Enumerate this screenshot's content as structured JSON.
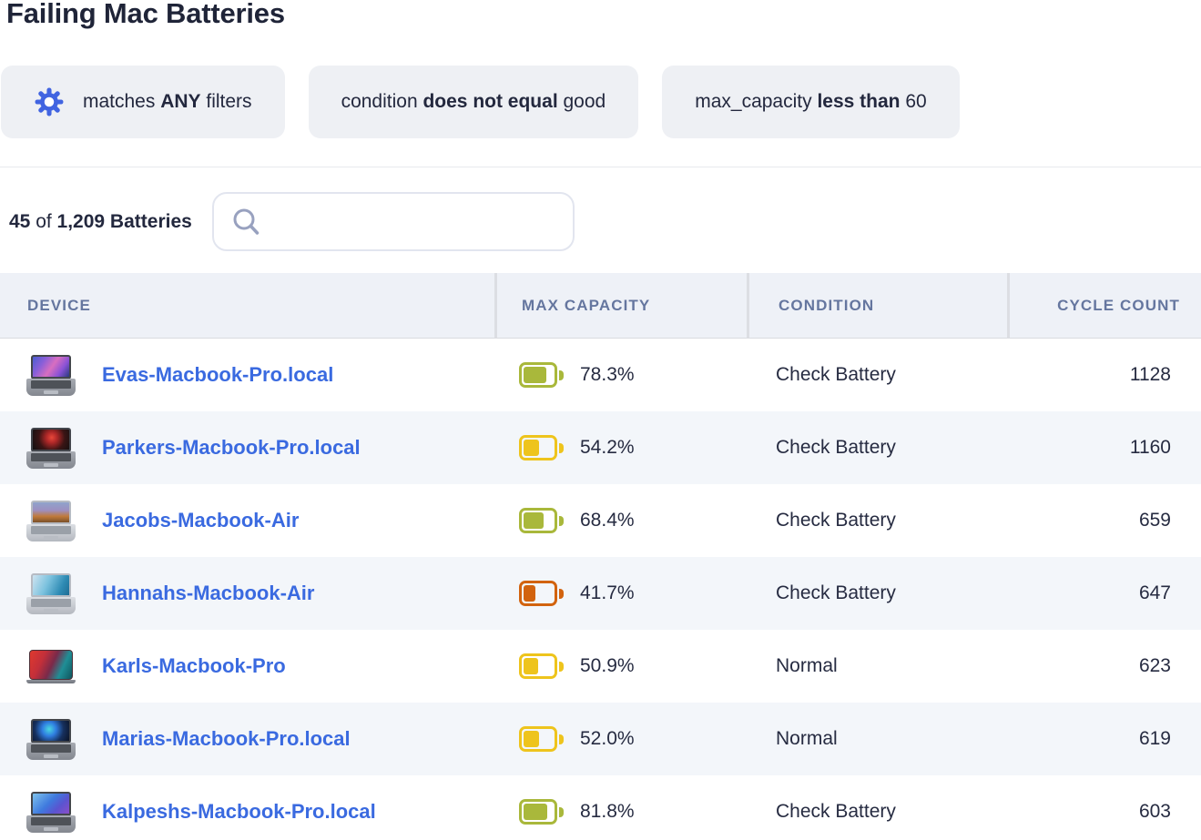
{
  "title": "Failing Mac Batteries",
  "filters": {
    "gear_color": "#4164e1",
    "chips": [
      {
        "icon": "gear-icon",
        "pre": "matches ",
        "bold": "ANY",
        "post": " filters"
      },
      {
        "icon": null,
        "pre": "condition ",
        "bold": "does not equal",
        "post": " good"
      },
      {
        "icon": null,
        "pre": "max_capacity ",
        "bold": "less than",
        "post": " 60"
      }
    ]
  },
  "toolbar": {
    "count": "45",
    "of_label": " of ",
    "total_label": "1,209 Batteries",
    "search_placeholder": ""
  },
  "table": {
    "link_color": "#3a6ae0",
    "columns": [
      "DEVICE",
      "MAX CAPACITY",
      "CONDITION",
      "CYCLE COUNT"
    ],
    "rows": [
      {
        "device": "Evas-Macbook-Pro.local",
        "max_capacity": "78.3%",
        "capacity_value": 78.3,
        "battery_color": "#a9b83b",
        "condition": "Check Battery",
        "cycle_count": "1128",
        "thumb": "pro-nebula"
      },
      {
        "device": "Parkers-Macbook-Pro.local",
        "max_capacity": "54.2%",
        "capacity_value": 54.2,
        "battery_color": "#eec41c",
        "condition": "Check Battery",
        "cycle_count": "1160",
        "thumb": "pro-red-burst"
      },
      {
        "device": "Jacobs-Macbook-Air",
        "max_capacity": "68.4%",
        "capacity_value": 68.4,
        "battery_color": "#a9b83b",
        "condition": "Check Battery",
        "cycle_count": "659",
        "thumb": "air-sierra"
      },
      {
        "device": "Hannahs-Macbook-Air",
        "max_capacity": "41.7%",
        "capacity_value": 41.7,
        "battery_color": "#d2630e",
        "condition": "Check Battery",
        "cycle_count": "647",
        "thumb": "air-wave"
      },
      {
        "device": "Karls-Macbook-Pro",
        "max_capacity": "50.9%",
        "capacity_value": 50.9,
        "battery_color": "#eec41c",
        "condition": "Normal",
        "cycle_count": "623",
        "thumb": "closed-art"
      },
      {
        "device": "Marias-Macbook-Pro.local",
        "max_capacity": "52.0%",
        "capacity_value": 52.0,
        "battery_color": "#eec41c",
        "condition": "Normal",
        "cycle_count": "619",
        "thumb": "pro-teal-burst"
      },
      {
        "device": "Kalpeshs-Macbook-Pro.local",
        "max_capacity": "81.8%",
        "capacity_value": 81.8,
        "battery_color": "#a9b83b",
        "condition": "Check Battery",
        "cycle_count": "603",
        "thumb": "pro-blue-purple"
      }
    ]
  }
}
